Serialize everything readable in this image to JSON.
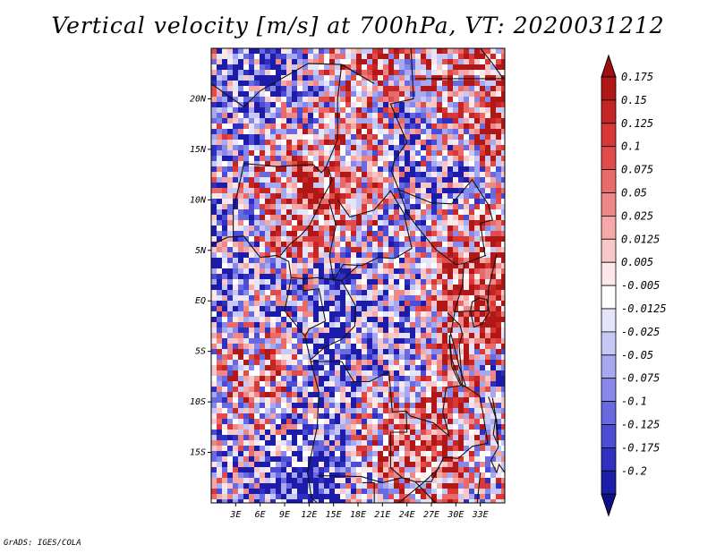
{
  "title": "Vertical velocity [m/s] at 700hPa, VT: 2020031212",
  "credit": "GrADS: IGES/COLA",
  "map": {
    "region": "Central Africa",
    "lon_range": [
      0,
      36
    ],
    "lat_range": [
      -20,
      25
    ],
    "lat_labels": [
      {
        "label": "20N",
        "lat": 20
      },
      {
        "label": "15N",
        "lat": 15
      },
      {
        "label": "10N",
        "lat": 10
      },
      {
        "label": "5N",
        "lat": 5
      },
      {
        "label": "EQ",
        "lat": 0
      },
      {
        "label": "5S",
        "lat": -5
      },
      {
        "label": "10S",
        "lat": -10
      },
      {
        "label": "15S",
        "lat": -15
      }
    ],
    "lon_labels": [
      {
        "label": "3E",
        "lon": 3
      },
      {
        "label": "6E",
        "lon": 6
      },
      {
        "label": "9E",
        "lon": 9
      },
      {
        "label": "12E",
        "lon": 12
      },
      {
        "label": "15E",
        "lon": 15
      },
      {
        "label": "18E",
        "lon": 18
      },
      {
        "label": "21E",
        "lon": 21
      },
      {
        "label": "24E",
        "lon": 24
      },
      {
        "label": "27E",
        "lon": 27
      },
      {
        "label": "30E",
        "lon": 30
      },
      {
        "label": "33E",
        "lon": 33
      }
    ]
  },
  "colorbar": {
    "levels": [
      {
        "label": "0.175",
        "color": "#b01818"
      },
      {
        "label": "0.15",
        "color": "#c42626"
      },
      {
        "label": "0.125",
        "color": "#d83838"
      },
      {
        "label": "0.1",
        "color": "#e04c4c"
      },
      {
        "label": "0.075",
        "color": "#e86a6a"
      },
      {
        "label": "0.05",
        "color": "#ee8888"
      },
      {
        "label": "0.025",
        "color": "#f4a8a8"
      },
      {
        "label": "0.0125",
        "color": "#f8c8c8"
      },
      {
        "label": "0.005",
        "color": "#fce8e8"
      },
      {
        "label": "-0.005",
        "color": "#ffffff"
      },
      {
        "label": "-0.0125",
        "color": "#e4e4fa"
      },
      {
        "label": "-0.025",
        "color": "#c8c8f6"
      },
      {
        "label": "-0.05",
        "color": "#a8a8f0"
      },
      {
        "label": "-0.075",
        "color": "#8888ea"
      },
      {
        "label": "-0.1",
        "color": "#6a6ae0"
      },
      {
        "label": "-0.125",
        "color": "#4c4cd4"
      },
      {
        "label": "-0.175",
        "color": "#3030c0"
      },
      {
        "label": "-0.2",
        "color": "#1c1ca8"
      }
    ],
    "top_color": "#a01010",
    "bottom_color": "#10108c"
  }
}
